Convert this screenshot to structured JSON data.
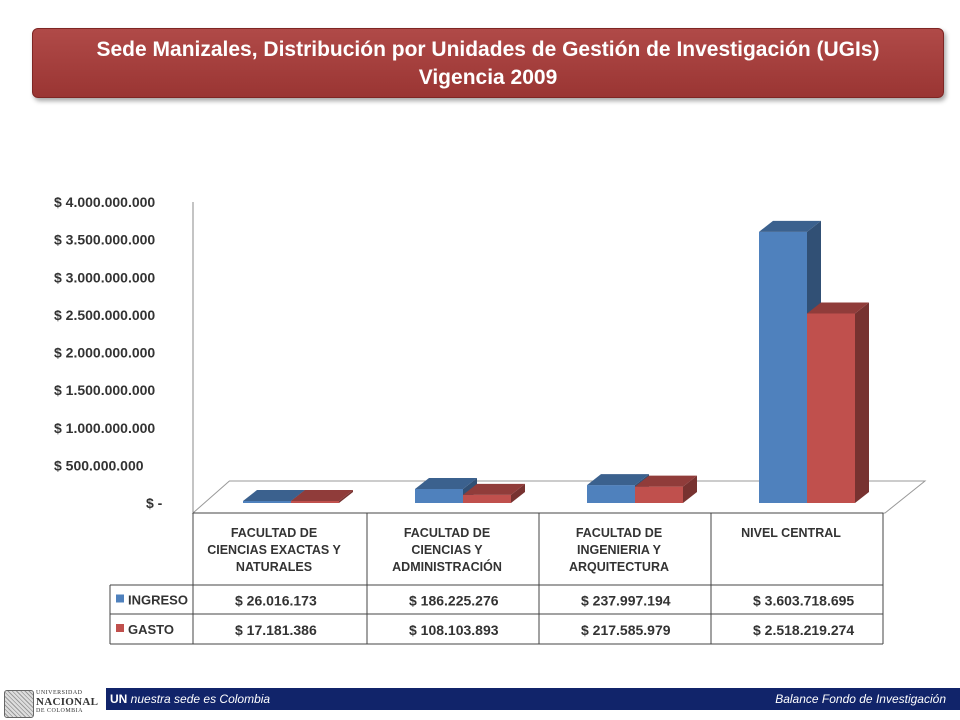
{
  "title": {
    "line1": "Sede Manizales, Distribución por Unidades de Gestión de Investigación (UGIs)",
    "line2": "Vigencia 2009"
  },
  "chart_data": {
    "type": "bar",
    "categories": [
      [
        "FACULTAD DE",
        "CIENCIAS EXACTAS Y",
        "NATURALES"
      ],
      [
        "FACULTAD DE",
        "CIENCIAS Y",
        "ADMINISTRACIÓN"
      ],
      [
        "FACULTAD DE",
        "INGENIERIA  Y",
        "ARQUITECTURA"
      ],
      [
        "NIVEL CENTRAL"
      ]
    ],
    "series": [
      {
        "name": "INGRESO",
        "color": "#4f81bd",
        "values": [
          26016173,
          186225276,
          237997194,
          3603718695
        ],
        "labels": [
          "$ 26.016.173",
          "$ 186.225.276",
          "$ 237.997.194",
          "$ 3.603.718.695"
        ]
      },
      {
        "name": "GASTO",
        "color": "#c0504d",
        "values": [
          17181386,
          108103893,
          217585979,
          2518219274
        ],
        "labels": [
          "$ 17.181.386",
          "$ 108.103.893",
          "$ 217.585.979",
          "$ 2.518.219.274"
        ]
      }
    ],
    "ylim": [
      0,
      4000000000
    ],
    "yticks": [
      0,
      500000000,
      1000000000,
      1500000000,
      2000000000,
      2500000000,
      3000000000,
      3500000000,
      4000000000
    ],
    "ytick_labels": [
      "$ -",
      "$ 500.000.000",
      "$ 1.000.000.000",
      "$ 1.500.000.000",
      "$ 2.000.000.000",
      "$ 2.500.000.000",
      "$ 3.000.000.000",
      "$ 3.500.000.000",
      "$ 4.000.000.000"
    ],
    "data_table": true,
    "three_d": true
  },
  "footer": {
    "left_bold": "UN",
    "left_text": " nuestra sede es Colombia",
    "right_text": "Balance Fondo de Investigación",
    "logo_line1": "UNIVERSIDAD",
    "logo_line2": "NACIONAL",
    "logo_line3": "DE COLOMBIA"
  }
}
